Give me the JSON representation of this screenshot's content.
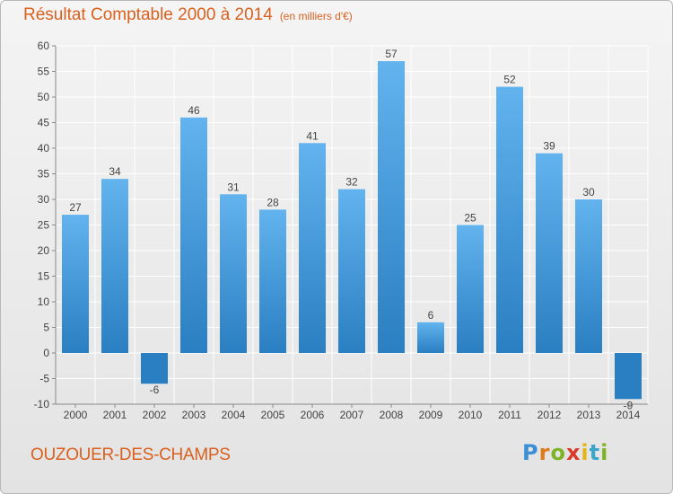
{
  "header": {
    "title": "Résultat Comptable 2000 à 2014",
    "unit": "(en milliers d'€)"
  },
  "footer": {
    "city": "OUZOUER-DES-CHAMPS",
    "logo_letters": [
      "P",
      "r",
      "o",
      "x",
      "i",
      "t",
      "i"
    ]
  },
  "colors": {
    "title": "#d9601e",
    "bar_light": "#62b3ee",
    "bar_dark": "#2a7fc2",
    "grid": "#ffffff",
    "background": "#ebebeb"
  },
  "chart_data": {
    "type": "bar",
    "categories": [
      "2000",
      "2001",
      "2002",
      "2003",
      "2004",
      "2005",
      "2006",
      "2007",
      "2008",
      "2009",
      "2010",
      "2011",
      "2012",
      "2013",
      "2014"
    ],
    "values": [
      27,
      34,
      -6,
      46,
      31,
      28,
      41,
      32,
      57,
      6,
      25,
      52,
      39,
      30,
      -9
    ],
    "data_labels": [
      "27",
      "34",
      "-6",
      "46",
      "31",
      "28",
      "41",
      "32",
      "57",
      "6",
      "25",
      "52",
      "39",
      "30",
      "-9"
    ],
    "yticks": [
      -10,
      -5,
      0,
      5,
      10,
      15,
      20,
      25,
      30,
      35,
      40,
      45,
      50,
      55,
      60
    ],
    "ylim": [
      -10,
      60
    ],
    "grid": true,
    "legend": "none"
  }
}
